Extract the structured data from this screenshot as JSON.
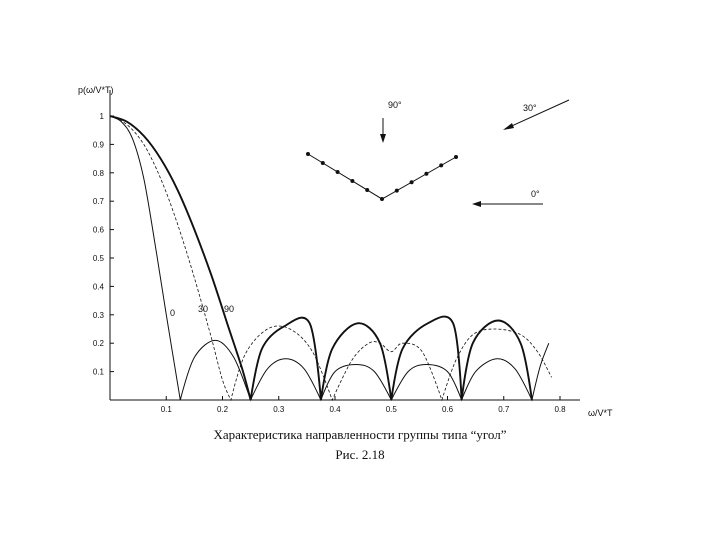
{
  "chart_data": {
    "type": "line",
    "title": "Характеристика направленности группы типа “угол”",
    "figure_number": "Рис. 2.18",
    "ylabel": "p(ω/V*T)",
    "xlabel": "ω/V*T",
    "xlim": [
      0,
      0.8
    ],
    "ylim": [
      0,
      1.0
    ],
    "x_ticks": [
      "0.1",
      "0.2",
      "0.3",
      "0.4",
      "0.5",
      "0.6",
      "0.7",
      "0.8"
    ],
    "y_ticks": [
      "0.1",
      "0.2",
      "0.3",
      "0.4",
      "0.5",
      "0.6",
      "0.7",
      "0.8",
      "0.9",
      "1"
    ],
    "grid": false,
    "series": [
      {
        "name": "0",
        "style": "thin-solid",
        "x": [
          0,
          0.02,
          0.04,
          0.06,
          0.08,
          0.1,
          0.125,
          0.15,
          0.1875,
          0.22,
          0.25,
          0.28,
          0.3125,
          0.345,
          0.375,
          0.4,
          0.4375,
          0.47,
          0.5,
          0.53,
          0.5625,
          0.6,
          0.625,
          0.65,
          0.6875,
          0.72,
          0.75,
          0.765,
          0.78
        ],
        "y": [
          1.0,
          0.98,
          0.92,
          0.78,
          0.55,
          0.3,
          0.0,
          0.15,
          0.21,
          0.15,
          0.0,
          0.11,
          0.145,
          0.11,
          0.0,
          0.1,
          0.125,
          0.1,
          0.0,
          0.1,
          0.125,
          0.1,
          0.0,
          0.1,
          0.145,
          0.11,
          0.0,
          0.12,
          0.2
        ]
      },
      {
        "name": "30",
        "style": "dashed",
        "x": [
          0,
          0.03,
          0.06,
          0.09,
          0.12,
          0.15,
          0.18,
          0.2,
          0.215,
          0.24,
          0.28,
          0.32,
          0.36,
          0.395,
          0.43,
          0.46,
          0.48,
          0.5,
          0.52,
          0.555,
          0.59,
          0.615,
          0.645,
          0.685,
          0.73,
          0.76,
          0.785
        ],
        "y": [
          1.0,
          0.97,
          0.9,
          0.78,
          0.62,
          0.43,
          0.22,
          0.07,
          0.0,
          0.16,
          0.25,
          0.25,
          0.17,
          0.0,
          0.14,
          0.2,
          0.2,
          0.17,
          0.2,
          0.17,
          0.0,
          0.14,
          0.23,
          0.25,
          0.23,
          0.17,
          0.08
        ]
      },
      {
        "name": "90",
        "style": "thick-solid",
        "x": [
          0,
          0.03,
          0.06,
          0.09,
          0.12,
          0.15,
          0.18,
          0.21,
          0.235,
          0.25,
          0.27,
          0.31,
          0.355,
          0.375,
          0.395,
          0.44,
          0.48,
          0.5,
          0.52,
          0.565,
          0.61,
          0.625,
          0.645,
          0.69,
          0.73,
          0.75
        ],
        "y": [
          1.0,
          0.98,
          0.93,
          0.85,
          0.74,
          0.6,
          0.44,
          0.26,
          0.11,
          0.0,
          0.18,
          0.26,
          0.27,
          0.0,
          0.18,
          0.27,
          0.2,
          0.0,
          0.18,
          0.27,
          0.27,
          0.0,
          0.2,
          0.28,
          0.2,
          0.0
        ]
      }
    ],
    "annotations": [
      "0",
      "30",
      "90"
    ],
    "inset": {
      "angle_labels": [
        "90°",
        "30°",
        "0°"
      ],
      "array_points_count": 11
    }
  }
}
